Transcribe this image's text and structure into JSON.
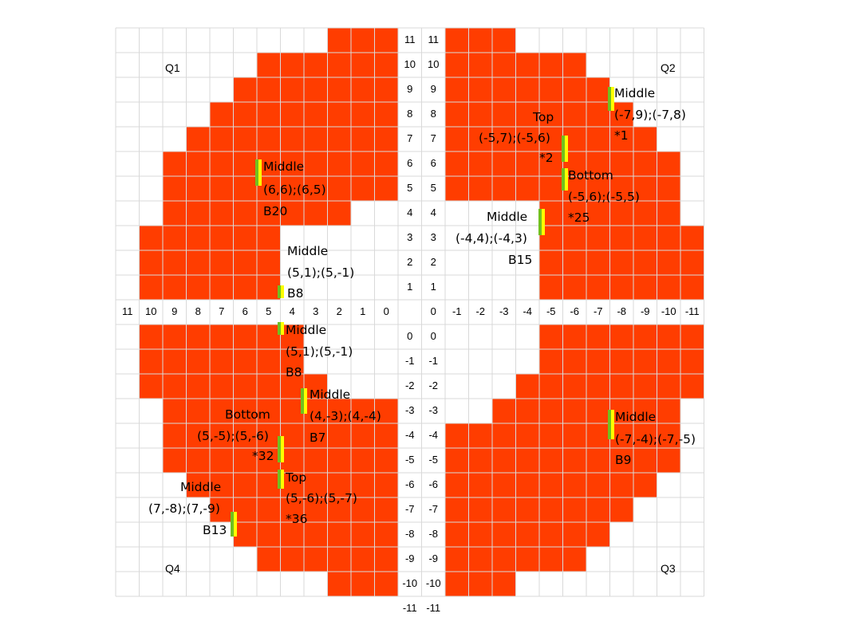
{
  "quadrants": [
    "Q1",
    "Q2",
    "Q3",
    "Q4"
  ],
  "axes": {
    "left_column_labels": [
      "11",
      "10",
      "9",
      "8",
      "7",
      "6",
      "5",
      "4",
      "3",
      "2",
      "1",
      "0",
      "-1",
      "-2",
      "-3",
      "-4",
      "-5",
      "-6",
      "-7",
      "-8",
      "-9",
      "-10",
      "-11"
    ],
    "right_column_labels": [
      "11",
      "10",
      "9",
      "8",
      "7",
      "6",
      "5",
      "4",
      "3",
      "2",
      "1",
      "0",
      "-1",
      "-2",
      "-3",
      "-4",
      "-5",
      "-6",
      "-7",
      "-8",
      "-9",
      "-10",
      "-11"
    ],
    "left_row_labels": [
      "11",
      "10",
      "9",
      "8",
      "7",
      "6",
      "5",
      "4",
      "3",
      "2",
      "1",
      "0"
    ],
    "right_row_labels": [
      "0",
      "-1",
      "-2",
      "-3",
      "-4",
      "-5",
      "-6",
      "-7",
      "-8",
      "-9",
      "-10",
      "-11"
    ]
  },
  "colors": {
    "fill": "#ff3d00",
    "grid": "#d9d9d9",
    "marker_green": "#70c020",
    "marker_yellow": "#ffff00"
  },
  "annotations": [
    {
      "lines": [
        "Middle",
        "(6,6);(6,5)",
        "B20"
      ]
    },
    {
      "lines": [
        "Middle",
        "(5,1);(5,-1)",
        "B8"
      ]
    },
    {
      "lines": [
        "Middle",
        "(5,1);(5,-1)",
        "B8"
      ]
    },
    {
      "lines": [
        "Middle",
        "(4,-3);(4,-4)",
        "B7"
      ]
    },
    {
      "lines": [
        "Bottom",
        "(5,-5);(5,-6)",
        "*32"
      ]
    },
    {
      "lines": [
        "Top",
        "(5,-6);(5,-7)",
        "*36"
      ]
    },
    {
      "lines": [
        "Middle",
        "(7,-8);(7,-9)",
        "B13"
      ]
    },
    {
      "lines": [
        "Middle",
        "(-7,9);(-7,8)",
        "*1"
      ]
    },
    {
      "lines": [
        "Top",
        "(-5,7);(-5,6)",
        "*2"
      ]
    },
    {
      "lines": [
        "Bottom",
        "(-5,6);(-5,5)",
        "*25"
      ]
    },
    {
      "lines": [
        "Middle",
        "(-4,4);(-4,3)",
        "B15"
      ]
    },
    {
      "lines": [
        "Middle",
        "(-7,-4);(-7,-5)",
        "B9"
      ]
    }
  ]
}
